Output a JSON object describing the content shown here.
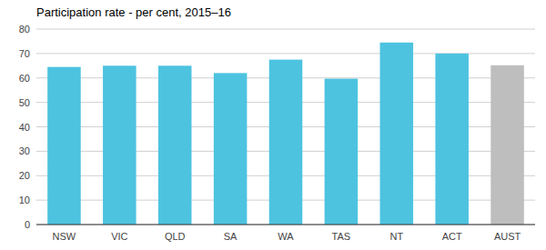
{
  "chart_data": {
    "type": "bar",
    "title": "Participation rate - per cent, 2015–16",
    "categories": [
      "NSW",
      "VIC",
      "QLD",
      "SA",
      "WA",
      "TAS",
      "NT",
      "ACT",
      "AUST"
    ],
    "values": [
      64.5,
      65.0,
      65.0,
      62.0,
      67.5,
      59.7,
      74.5,
      70.0,
      65.2
    ],
    "colors": [
      "#4DC3E0",
      "#4DC3E0",
      "#4DC3E0",
      "#4DC3E0",
      "#4DC3E0",
      "#4DC3E0",
      "#4DC3E0",
      "#4DC3E0",
      "#BEBEBE"
    ],
    "ylim": [
      0,
      80
    ],
    "yticks": [
      0,
      10,
      20,
      30,
      40,
      50,
      60,
      70,
      80
    ],
    "grid": true
  }
}
